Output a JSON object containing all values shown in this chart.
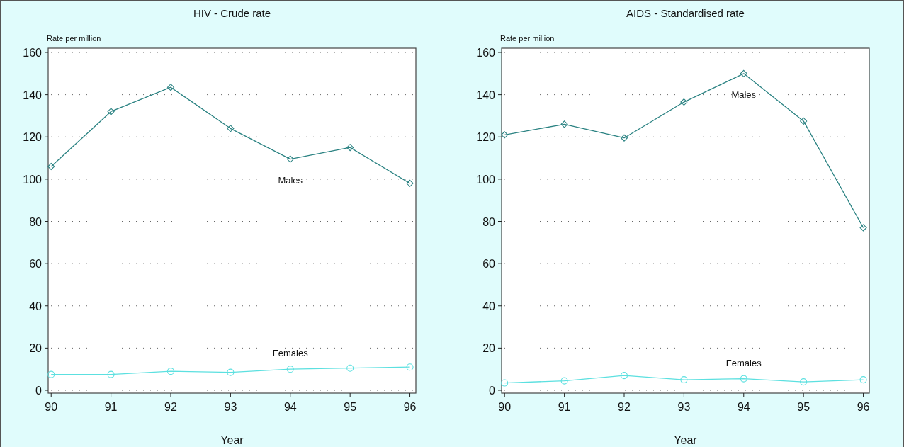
{
  "chart_data": [
    {
      "type": "line",
      "title": "HIV - Crude rate",
      "ylabel": "Rate per million",
      "xlabel": "Year",
      "x": [
        90,
        91,
        92,
        93,
        94,
        95,
        96
      ],
      "xlim": [
        89.95,
        96.1
      ],
      "xticks": [
        90,
        91,
        92,
        93,
        94,
        95,
        96
      ],
      "ylim": [
        0,
        160
      ],
      "yticks": [
        0,
        20,
        40,
        60,
        80,
        100,
        120,
        140,
        160
      ],
      "grid": "y",
      "line_style": "solid",
      "series": [
        {
          "name": "Males",
          "color": "#2a8282",
          "marker": "diamond",
          "values": [
            106,
            132,
            143.5,
            124,
            109.5,
            115,
            98
          ]
        },
        {
          "name": "Females",
          "color": "#5ce0e0",
          "marker": "circle",
          "values": [
            7.5,
            7.5,
            9,
            8.5,
            10,
            10.5,
            11
          ]
        }
      ]
    },
    {
      "type": "line",
      "title": "AIDS - Standardised rate",
      "ylabel": "Rate per million",
      "xlabel": "Year",
      "x": [
        90,
        91,
        92,
        93,
        94,
        95,
        96
      ],
      "xlim": [
        89.95,
        96.1
      ],
      "xticks": [
        90,
        91,
        92,
        93,
        94,
        95,
        96
      ],
      "ylim": [
        0,
        160
      ],
      "yticks": [
        0,
        20,
        40,
        60,
        80,
        100,
        120,
        140,
        160
      ],
      "grid": "y",
      "line_style": "solid",
      "series": [
        {
          "name": "Males",
          "color": "#2a8282",
          "marker": "diamond",
          "values": [
            121,
            126,
            119.5,
            136.5,
            150,
            127.5,
            77
          ]
        },
        {
          "name": "Females",
          "color": "#5ce0e0",
          "marker": "circle",
          "values": [
            3.5,
            4.5,
            7,
            5,
            5.5,
            4,
            5
          ]
        }
      ]
    }
  ]
}
